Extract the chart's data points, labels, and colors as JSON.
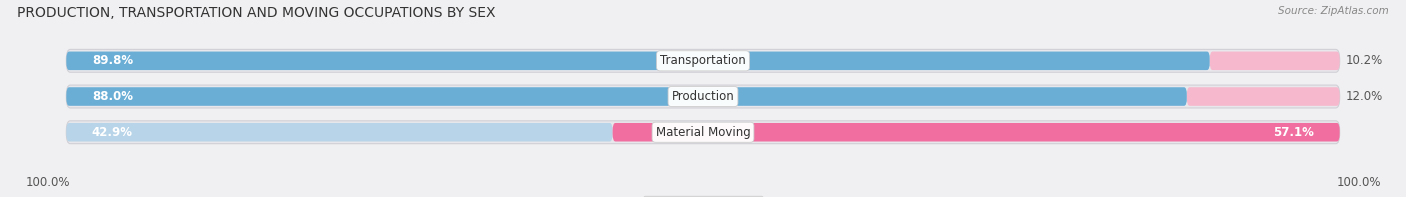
{
  "title": "PRODUCTION, TRANSPORTATION AND MOVING OCCUPATIONS BY SEX",
  "source": "Source: ZipAtlas.com",
  "categories": [
    "Transportation",
    "Production",
    "Material Moving"
  ],
  "male_values": [
    89.8,
    88.0,
    42.9
  ],
  "female_values": [
    10.2,
    12.0,
    57.1
  ],
  "male_color_strong": "#6aaed6",
  "male_color_light": "#b8d4e8",
  "female_color_strong": "#f06fa0",
  "female_color_light": "#f5b8cc",
  "bg_bar_color": "#e8e8ec",
  "fig_bg": "#f0f0f2",
  "title_fontsize": 10,
  "source_fontsize": 7.5,
  "bar_label_fontsize": 8.5,
  "pct_label_fontsize": 8.5,
  "cat_label_fontsize": 8.5,
  "bar_height": 0.52,
  "left_label": "100.0%",
  "right_label": "100.0%",
  "xlim_left": -3,
  "xlim_right": 103
}
